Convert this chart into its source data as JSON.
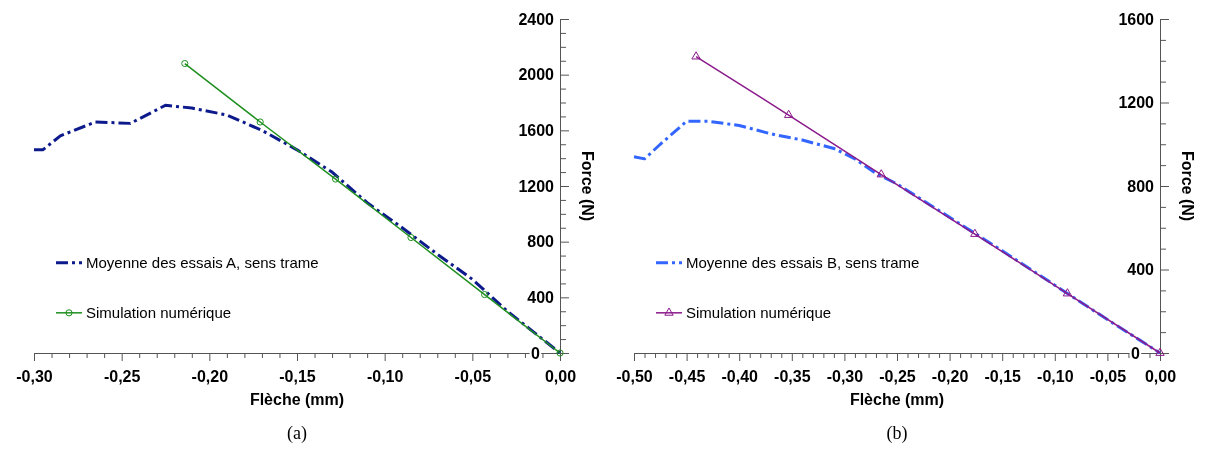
{
  "chart_data": [
    {
      "type": "line",
      "xlabel": "Flèche (mm)",
      "ylabel": "Force (N)",
      "annotations": [
        "(a)"
      ],
      "legend": "left",
      "xlim": [
        -0.3,
        0.0
      ],
      "ylim": [
        0,
        2400
      ],
      "xticks": [
        {
          "value": -0.3,
          "label": "-0,30"
        },
        {
          "value": -0.29,
          "label": null
        },
        {
          "value": -0.28,
          "label": null
        },
        {
          "value": -0.27,
          "label": null
        },
        {
          "value": -0.26,
          "label": null
        },
        {
          "value": -0.25,
          "label": "-0,25"
        },
        {
          "value": -0.24,
          "label": null
        },
        {
          "value": -0.23,
          "label": null
        },
        {
          "value": -0.22,
          "label": null
        },
        {
          "value": -0.21,
          "label": null
        },
        {
          "value": -0.2,
          "label": "-0,20"
        },
        {
          "value": -0.19,
          "label": null
        },
        {
          "value": -0.18,
          "label": null
        },
        {
          "value": -0.17,
          "label": null
        },
        {
          "value": -0.16,
          "label": null
        },
        {
          "value": -0.15,
          "label": "-0,15"
        },
        {
          "value": -0.14,
          "label": null
        },
        {
          "value": -0.13,
          "label": null
        },
        {
          "value": -0.12,
          "label": null
        },
        {
          "value": -0.11,
          "label": null
        },
        {
          "value": -0.1,
          "label": "-0,10"
        },
        {
          "value": -0.09,
          "label": null
        },
        {
          "value": -0.08,
          "label": null
        },
        {
          "value": -0.07,
          "label": null
        },
        {
          "value": -0.06,
          "label": null
        },
        {
          "value": -0.05,
          "label": "-0,05"
        },
        {
          "value": -0.04,
          "label": null
        },
        {
          "value": -0.03,
          "label": null
        },
        {
          "value": -0.02,
          "label": null
        },
        {
          "value": -0.01,
          "label": null
        },
        {
          "value": 0.0,
          "label": "0,00"
        }
      ],
      "yticks": [
        0,
        {
          "value": 100,
          "label": null
        },
        {
          "value": 200,
          "label": null
        },
        {
          "value": 300,
          "label": null
        },
        400,
        {
          "value": 500,
          "label": null
        },
        {
          "value": 600,
          "label": null
        },
        {
          "value": 700,
          "label": null
        },
        800,
        {
          "value": 900,
          "label": null
        },
        {
          "value": 1000,
          "label": null
        },
        {
          "value": 1100,
          "label": null
        },
        1200,
        {
          "value": 1300,
          "label": null
        },
        {
          "value": 1400,
          "label": null
        },
        {
          "value": 1500,
          "label": null
        },
        1600,
        {
          "value": 1700,
          "label": null
        },
        {
          "value": 1800,
          "label": null
        },
        {
          "value": 1900,
          "label": null
        },
        2000,
        {
          "value": 2100,
          "label": null
        },
        {
          "value": 2200,
          "label": null
        },
        {
          "value": 2300,
          "label": null
        },
        2400
      ],
      "series": [
        {
          "name": "Moyenne des essais A, sens trame",
          "color": "#0d1a8c",
          "line_style": "dashed",
          "marker": "none",
          "x": [
            -0.3,
            -0.295,
            -0.285,
            -0.265,
            -0.245,
            -0.225,
            -0.21,
            -0.19,
            -0.17,
            -0.15,
            -0.13,
            -0.11,
            -0.09,
            -0.07,
            -0.05,
            -0.03,
            -0.015,
            0.0
          ],
          "values": [
            1460,
            1460,
            1560,
            1660,
            1650,
            1780,
            1760,
            1710,
            1600,
            1460,
            1300,
            1080,
            900,
            710,
            530,
            300,
            150,
            0
          ]
        },
        {
          "name": "Simulation numérique",
          "color": "#1f8f1f",
          "line_style": "solid",
          "marker": "circle",
          "x": [
            -0.214,
            -0.171,
            -0.128,
            -0.085,
            -0.043,
            0.0
          ],
          "values": [
            2080,
            1660,
            1250,
            830,
            420,
            0
          ]
        }
      ]
    },
    {
      "type": "line",
      "xlabel": "Flèche (mm)",
      "ylabel": "Force (N)",
      "annotations": [
        "(b)"
      ],
      "legend": "left",
      "xlim": [
        -0.5,
        0.0
      ],
      "ylim": [
        0,
        1600
      ],
      "xticks": [
        {
          "value": -0.5,
          "label": "-0,50"
        },
        {
          "value": -0.49,
          "label": null
        },
        {
          "value": -0.48,
          "label": null
        },
        {
          "value": -0.47,
          "label": null
        },
        {
          "value": -0.46,
          "label": null
        },
        {
          "value": -0.45,
          "label": "-0,45"
        },
        {
          "value": -0.44,
          "label": null
        },
        {
          "value": -0.43,
          "label": null
        },
        {
          "value": -0.42,
          "label": null
        },
        {
          "value": -0.41,
          "label": null
        },
        {
          "value": -0.4,
          "label": "-0,40"
        },
        {
          "value": -0.39,
          "label": null
        },
        {
          "value": -0.38,
          "label": null
        },
        {
          "value": -0.37,
          "label": null
        },
        {
          "value": -0.36,
          "label": null
        },
        {
          "value": -0.35,
          "label": "-0,35"
        },
        {
          "value": -0.34,
          "label": null
        },
        {
          "value": -0.33,
          "label": null
        },
        {
          "value": -0.32,
          "label": null
        },
        {
          "value": -0.31,
          "label": null
        },
        {
          "value": -0.3,
          "label": "-0,30"
        },
        {
          "value": -0.29,
          "label": null
        },
        {
          "value": -0.28,
          "label": null
        },
        {
          "value": -0.27,
          "label": null
        },
        {
          "value": -0.26,
          "label": null
        },
        {
          "value": -0.25,
          "label": "-0,25"
        },
        {
          "value": -0.24,
          "label": null
        },
        {
          "value": -0.23,
          "label": null
        },
        {
          "value": -0.22,
          "label": null
        },
        {
          "value": -0.21,
          "label": null
        },
        {
          "value": -0.2,
          "label": "-0,20"
        },
        {
          "value": -0.19,
          "label": null
        },
        {
          "value": -0.18,
          "label": null
        },
        {
          "value": -0.17,
          "label": null
        },
        {
          "value": -0.16,
          "label": null
        },
        {
          "value": -0.15,
          "label": "-0,15"
        },
        {
          "value": -0.14,
          "label": null
        },
        {
          "value": -0.13,
          "label": null
        },
        {
          "value": -0.12,
          "label": null
        },
        {
          "value": -0.11,
          "label": null
        },
        {
          "value": -0.1,
          "label": "-0,10"
        },
        {
          "value": -0.09,
          "label": null
        },
        {
          "value": -0.08,
          "label": null
        },
        {
          "value": -0.07,
          "label": null
        },
        {
          "value": -0.06,
          "label": null
        },
        {
          "value": -0.05,
          "label": "-0,05"
        },
        {
          "value": -0.04,
          "label": null
        },
        {
          "value": -0.03,
          "label": null
        },
        {
          "value": -0.02,
          "label": null
        },
        {
          "value": -0.01,
          "label": null
        },
        {
          "value": 0.0,
          "label": "0,00"
        }
      ],
      "yticks": [
        0,
        {
          "value": 100,
          "label": null
        },
        {
          "value": 200,
          "label": null
        },
        {
          "value": 300,
          "label": null
        },
        400,
        {
          "value": 500,
          "label": null
        },
        {
          "value": 600,
          "label": null
        },
        {
          "value": 700,
          "label": null
        },
        800,
        {
          "value": 900,
          "label": null
        },
        {
          "value": 1000,
          "label": null
        },
        {
          "value": 1100,
          "label": null
        },
        1200,
        {
          "value": 1300,
          "label": null
        },
        {
          "value": 1400,
          "label": null
        },
        {
          "value": 1500,
          "label": null
        },
        1600
      ],
      "series": [
        {
          "name": "Moyenne des essais B, sens trame",
          "color": "#3366ff",
          "line_style": "dashed",
          "marker": "none",
          "x": [
            -0.5,
            -0.49,
            -0.475,
            -0.45,
            -0.43,
            -0.4,
            -0.37,
            -0.34,
            -0.31,
            -0.29,
            -0.27,
            -0.25,
            -0.2,
            -0.15,
            -0.1,
            -0.05,
            0.0
          ],
          "values": [
            940,
            930,
            1000,
            1110,
            1110,
            1090,
            1050,
            1020,
            980,
            930,
            860,
            810,
            650,
            490,
            325,
            160,
            0
          ]
        },
        {
          "name": "Simulation numérique",
          "color": "#8b1a8b",
          "line_style": "solid",
          "marker": "triangle",
          "x": [
            -0.441,
            -0.353,
            -0.265,
            -0.176,
            -0.088,
            0.0
          ],
          "values": [
            1420,
            1140,
            855,
            570,
            285,
            0
          ]
        }
      ]
    }
  ]
}
